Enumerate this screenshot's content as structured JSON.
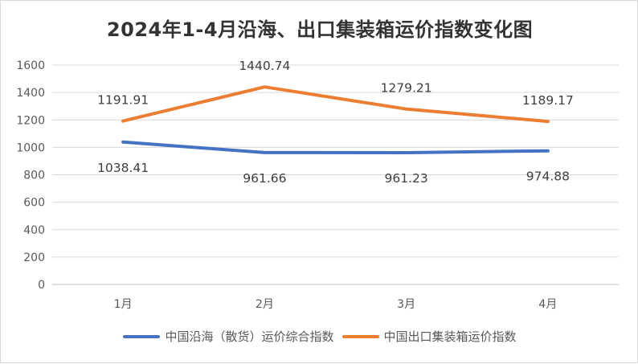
{
  "chart_data": {
    "type": "line",
    "title": "2024年1-4月沿海、出口集装箱运价指数变化图",
    "categories": [
      "1月",
      "2月",
      "3月",
      "4月"
    ],
    "series": [
      {
        "name": "中国沿海（散货）运价综合指数",
        "values": [
          1038.41,
          961.66,
          961.23,
          974.88
        ],
        "labels": [
          "1038.41",
          "961.66",
          "961.23",
          "974.88"
        ],
        "color": "#4472C4",
        "label_position": "below"
      },
      {
        "name": "中国出口集装箱运价指数",
        "values": [
          1191.91,
          1440.74,
          1279.21,
          1189.17
        ],
        "labels": [
          "1191.91",
          "1440.74",
          "1279.21",
          "1189.17"
        ],
        "color": "#ED7D31",
        "label_position": "above"
      }
    ],
    "ylim": [
      0,
      1600
    ],
    "yticks": [
      "0",
      "200",
      "400",
      "600",
      "800",
      "1000",
      "1200",
      "1400",
      "1600"
    ],
    "grid": true,
    "legend_position": "bottom"
  }
}
